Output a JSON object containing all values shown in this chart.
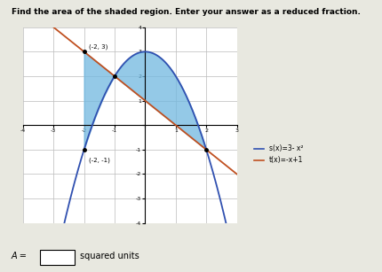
{
  "title": "Find the area of the shaded region. Enter your answer as a reduced fraction.",
  "s_label": "s(x)=3- x²",
  "t_label": "t(x)=-x+1",
  "s_color": "#3050B0",
  "t_color": "#C05020",
  "shade_color": "#70B8E0",
  "shade_alpha": 0.75,
  "point1": [
    -2,
    3
  ],
  "point2": [
    -2,
    -1
  ],
  "x_int1": -1.0,
  "x_int2": 2.0,
  "xlim": [
    -4,
    3
  ],
  "ylim": [
    -4,
    4
  ],
  "xticks": [
    -4,
    -3,
    -2,
    -1,
    0,
    1,
    2,
    3
  ],
  "yticks": [
    -4,
    -3,
    -2,
    -1,
    0,
    1,
    2,
    3,
    4
  ],
  "answer_label": "A =",
  "units_label": "squared units",
  "background": "#e8e8e0",
  "plot_bg": "#ffffff",
  "grid_color": "#bbbbbb"
}
